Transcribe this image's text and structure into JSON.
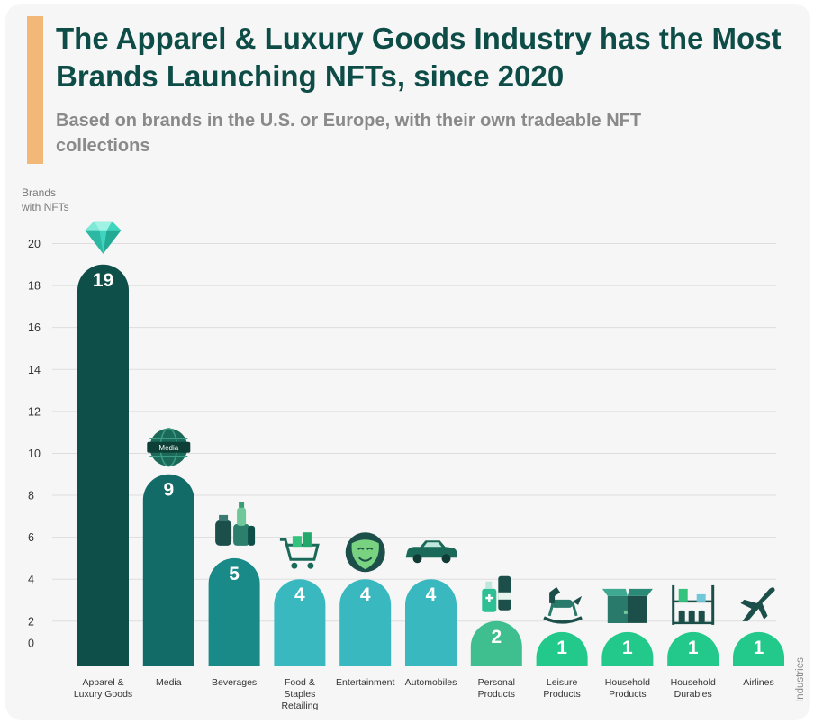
{
  "header": {
    "title": "The Apparel & Luxury Goods Industry has the Most Brands Launching NFTs, since 2020",
    "subtitle": "Based on brands in the U.S. or Europe, with their own tradeable NFT collections"
  },
  "chart_data": {
    "type": "bar",
    "ylabel": "Brands with NFTs",
    "xlabel": "Industries",
    "ylim": [
      0,
      20
    ],
    "yticks": [
      0,
      2,
      4,
      6,
      8,
      10,
      12,
      14,
      16,
      18,
      20
    ],
    "grid": true,
    "categories": [
      "Apparel & Luxury Goods",
      "Media",
      "Beverages",
      "Food & Staples Retailing",
      "Entertainment",
      "Automobiles",
      "Personal Products",
      "Leisure Products",
      "Household Products",
      "Household Durables",
      "Airlines"
    ],
    "values": [
      19,
      9,
      5,
      4,
      4,
      4,
      2,
      1,
      1,
      1,
      1
    ],
    "bar_colors": [
      "#0f4f49",
      "#136b67",
      "#1a8a88",
      "#3ab8c0",
      "#3ab8c0",
      "#3ab8c0",
      "#3fbf8f",
      "#22c98a",
      "#22c98a",
      "#22c98a",
      "#22c98a"
    ],
    "icons": [
      "diamond-icon",
      "globe-icon",
      "bottles-icon",
      "shopping-cart-icon",
      "theater-mask-icon",
      "car-icon",
      "lotion-bottles-icon",
      "rocking-horse-icon",
      "box-icon",
      "shelf-icon",
      "airplane-icon"
    ],
    "icon_labels": {
      "globe-icon": "Media"
    }
  }
}
